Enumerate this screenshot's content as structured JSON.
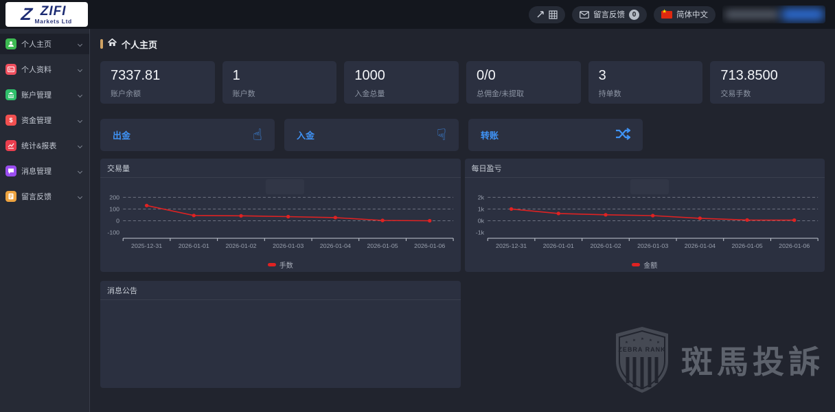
{
  "brand": {
    "name": "ZIFI",
    "subtitle": "Markets Ltd"
  },
  "topbar": {
    "feedback_label": "留言反馈",
    "feedback_badge": "0",
    "language": "简体中文"
  },
  "sidebar": {
    "items": [
      {
        "label": "个人主页",
        "icon": "user-icon",
        "color": "#3dbb52",
        "active": true
      },
      {
        "label": "个人资料",
        "icon": "id-card-icon",
        "color": "#ef4f5e",
        "active": false
      },
      {
        "label": "账户管理",
        "icon": "bank-icon",
        "color": "#2fbf6b",
        "active": false
      },
      {
        "label": "资金管理",
        "icon": "dollar-icon",
        "color": "#f25050",
        "active": false
      },
      {
        "label": "统计&报表",
        "icon": "chart-icon",
        "color": "#ea3e4e",
        "active": false
      },
      {
        "label": "消息管理",
        "icon": "chat-icon",
        "color": "#9a4df0",
        "active": false
      },
      {
        "label": "留言反馈",
        "icon": "note-icon",
        "color": "#eda33f",
        "active": false
      }
    ]
  },
  "page": {
    "title": "个人主页"
  },
  "stats": [
    {
      "value": "7337.81",
      "label": "账户余额"
    },
    {
      "value": "1",
      "label": "账户数"
    },
    {
      "value": "1000",
      "label": "入金总量"
    },
    {
      "value": "0/0",
      "label": "总佣金/未提取"
    },
    {
      "value": "3",
      "label": "持单数"
    },
    {
      "value": "713.8500",
      "label": "交易手数"
    }
  ],
  "actions": [
    {
      "label": "出金",
      "icon": "hand-up-icon"
    },
    {
      "label": "入金",
      "icon": "hand-down-icon"
    },
    {
      "label": "转账",
      "icon": "shuffle-icon"
    }
  ],
  "messages_panel": {
    "title": "消息公告"
  },
  "watermark": {
    "badge_text": "ZEBRA RANK",
    "text": "斑馬投訴"
  },
  "colors": {
    "accent_blue": "#3f93f6",
    "line_red": "#e02222",
    "accent_gold": "#cfa263"
  },
  "chart_data": [
    {
      "type": "line",
      "title": "交易量",
      "categories": [
        "2025-12-31",
        "2026-01-01",
        "2026-01-02",
        "2026-01-03",
        "2026-01-04",
        "2026-01-05",
        "2026-01-06"
      ],
      "series": [
        {
          "name": "手数",
          "values": [
            130,
            45,
            42,
            35,
            27,
            3,
            0
          ]
        }
      ],
      "color": "#e02222",
      "ylim": [
        -150,
        320
      ],
      "yticks": [
        {
          "value": 200,
          "label": "200",
          "gridline": true
        },
        {
          "value": 100,
          "label": "100",
          "gridline": true
        },
        {
          "value": 0,
          "label": "0",
          "gridline": true
        },
        {
          "value": -100,
          "label": "-100",
          "gridline": false
        }
      ],
      "grid": "dashed",
      "legend_position": "bottom"
    },
    {
      "type": "line",
      "title": "每日盈亏",
      "categories": [
        "2025-12-31",
        "2026-01-01",
        "2026-01-02",
        "2026-01-03",
        "2026-01-04",
        "2026-01-05",
        "2026-01-06"
      ],
      "series": [
        {
          "name": "金额",
          "values": [
            1000,
            620,
            510,
            440,
            210,
            60,
            50
          ]
        }
      ],
      "color": "#e02222",
      "ylim": [
        -1500,
        3200
      ],
      "yticks": [
        {
          "value": 2000,
          "label": "2k",
          "gridline": true
        },
        {
          "value": 1000,
          "label": "1k",
          "gridline": true
        },
        {
          "value": 0,
          "label": "0k",
          "gridline": true
        },
        {
          "value": -1000,
          "label": "-1k",
          "gridline": false
        }
      ],
      "grid": "dashed",
      "legend_position": "bottom"
    }
  ]
}
